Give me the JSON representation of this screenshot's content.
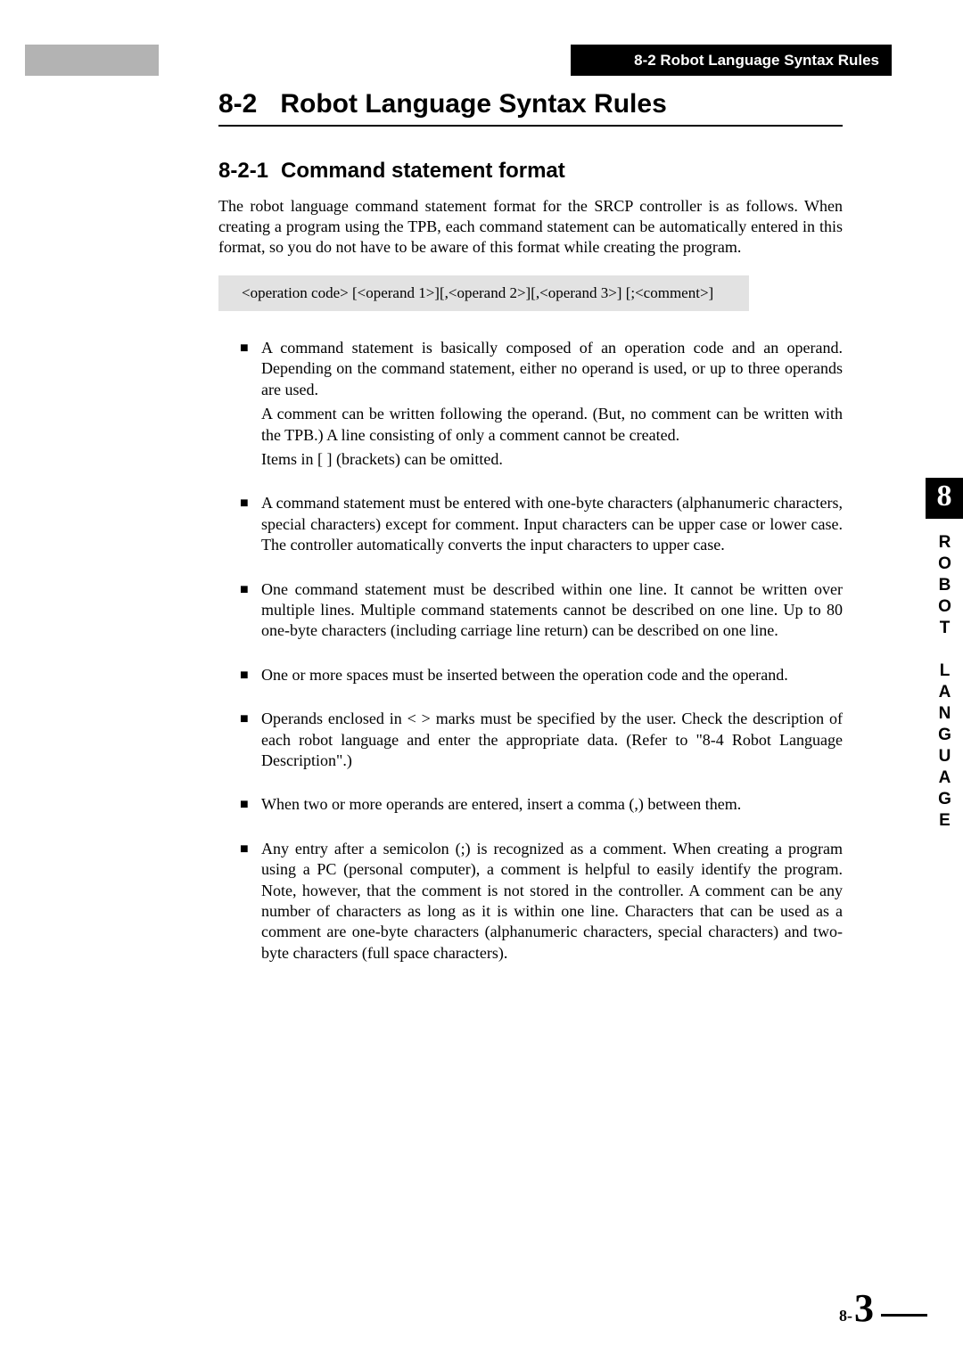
{
  "header": {
    "running_head": "8-2 Robot Language Syntax Rules"
  },
  "section": {
    "number": "8-2",
    "title": "Robot Language Syntax Rules"
  },
  "subsection": {
    "number": "8-2-1",
    "title": "Command statement format"
  },
  "intro": "The robot language command statement format for the SRCP controller is as follows. When creating a program using the TPB, each command statement can be automatically entered in this format, so you do not have to be aware of this format while creating the program.",
  "syntax_box": "<operation code>      [<operand 1>][,<operand 2>][,<operand 3>] [;<comment>]",
  "bullets": [
    {
      "main": "A command statement is basically composed of an operation code and an operand. Depending on the command statement, either no operand is used, or up to three operands are used.",
      "extra1": "A comment can be written following the operand. (But, no comment can be written with the TPB.) A line consisting of only a comment cannot be created.",
      "extra2": "Items in [  ] (brackets) can be omitted."
    },
    {
      "main": "A command statement must be entered with one-byte characters (alphanumeric characters, special characters) except for comment. Input characters can be upper case or lower case. The controller automatically converts the input characters to upper case."
    },
    {
      "main": "One command statement must be described within one line. It cannot be written over multiple lines. Multiple command statements cannot be described on one line. Up to 80 one-byte characters (including carriage line return) can be described on one line."
    },
    {
      "main": "One or more spaces must be inserted between the operation code and the operand."
    },
    {
      "main": "Operands enclosed in <  > marks must be specified by the user. Check the description of each robot language and enter the appropriate data. (Refer to \"8-4 Robot Language Description\".)"
    },
    {
      "main": "When two or more operands are entered, insert a comma (,) between them."
    },
    {
      "main": "Any entry after a semicolon (;) is recognized as a comment. When creating a program using a PC (personal computer), a comment is helpful to easily identify the program. Note, however, that the comment is not stored in the controller. A comment can be any number of characters as long as it is within one line. Characters that can be used as a comment are one-byte characters (alphanumeric characters, special characters) and two-byte characters (full space characters)."
    }
  ],
  "side": {
    "chapter_number": "8",
    "chapter_label": "ROBOT LANGUAGE"
  },
  "footer": {
    "prefix": "8-",
    "page": "3"
  },
  "colors": {
    "gray_bar": "#b3b3b3",
    "syntax_bg": "#e2e2e2",
    "black": "#000000",
    "white": "#ffffff"
  },
  "typography": {
    "body_family": "Times New Roman",
    "heading_family": "Arial",
    "section_title_size_pt": 22,
    "sub_title_size_pt": 18,
    "body_size_pt": 13
  }
}
